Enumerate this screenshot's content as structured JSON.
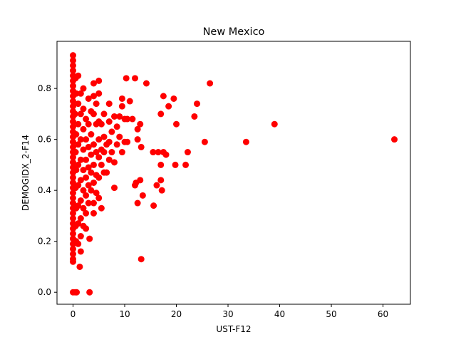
{
  "chart_data": {
    "type": "scatter",
    "title": "New Mexico",
    "xlabel": "UST-F12",
    "ylabel": "DEMOGIDX_2-F14",
    "xlim": [
      -3.1,
      65.3
    ],
    "ylim": [
      -0.047,
      0.985
    ],
    "xticks": [
      0,
      10,
      20,
      30,
      40,
      50,
      60
    ],
    "yticks": [
      0.0,
      0.2,
      0.4,
      0.6,
      0.8
    ],
    "marker_color": "#ff0000",
    "grid": false,
    "points": [
      [
        0,
        0.93
      ],
      [
        0,
        0.91
      ],
      [
        0,
        0.89
      ],
      [
        0,
        0.87
      ],
      [
        0,
        0.85
      ],
      [
        0,
        0.83
      ],
      [
        0,
        0.81
      ],
      [
        0,
        0.79
      ],
      [
        0,
        0.77
      ],
      [
        0,
        0.75
      ],
      [
        0,
        0.73
      ],
      [
        0,
        0.71
      ],
      [
        0,
        0.69
      ],
      [
        0,
        0.67
      ],
      [
        0,
        0.65
      ],
      [
        0,
        0.63
      ],
      [
        0,
        0.61
      ],
      [
        0,
        0.59
      ],
      [
        0,
        0.57
      ],
      [
        0,
        0.55
      ],
      [
        0,
        0.53
      ],
      [
        0,
        0.51
      ],
      [
        0,
        0.49
      ],
      [
        0,
        0.47
      ],
      [
        0,
        0.45
      ],
      [
        0,
        0.43
      ],
      [
        0,
        0.41
      ],
      [
        0,
        0.39
      ],
      [
        0,
        0.37
      ],
      [
        0,
        0.35
      ],
      [
        0,
        0.33
      ],
      [
        0,
        0.31
      ],
      [
        0,
        0.29
      ],
      [
        0,
        0.27
      ],
      [
        0,
        0.25
      ],
      [
        0,
        0.23
      ],
      [
        0,
        0.21
      ],
      [
        0,
        0.19
      ],
      [
        0,
        0.17
      ],
      [
        0,
        0.15
      ],
      [
        0,
        0.13
      ],
      [
        0,
        0.12
      ],
      [
        0,
        0.0
      ],
      [
        0.4,
        0.0
      ],
      [
        0.7,
        0.0
      ],
      [
        3.2,
        0.0
      ],
      [
        0.5,
        0.84
      ],
      [
        0.6,
        0.78
      ],
      [
        0.4,
        0.7
      ],
      [
        0.6,
        0.62
      ],
      [
        0.5,
        0.55
      ],
      [
        0.6,
        0.48
      ],
      [
        0.5,
        0.41
      ],
      [
        0.6,
        0.33
      ],
      [
        0.5,
        0.26
      ],
      [
        0.6,
        0.2
      ],
      [
        1,
        0.85
      ],
      [
        1,
        0.74
      ],
      [
        1,
        0.66
      ],
      [
        1,
        0.58
      ],
      [
        1,
        0.5
      ],
      [
        1,
        0.42
      ],
      [
        1,
        0.34
      ],
      [
        1,
        0.27
      ],
      [
        1,
        0.19
      ],
      [
        1.3,
        0.1
      ],
      [
        1.5,
        0.78
      ],
      [
        1.5,
        0.7
      ],
      [
        1.5,
        0.6
      ],
      [
        1.5,
        0.52
      ],
      [
        1.5,
        0.44
      ],
      [
        1.5,
        0.36
      ],
      [
        1.5,
        0.29
      ],
      [
        1.5,
        0.22
      ],
      [
        1.5,
        0.16
      ],
      [
        2,
        0.8
      ],
      [
        2,
        0.72
      ],
      [
        2,
        0.64
      ],
      [
        2,
        0.56
      ],
      [
        2,
        0.48
      ],
      [
        2,
        0.4
      ],
      [
        2,
        0.33
      ],
      [
        2,
        0.26
      ],
      [
        2.5,
        0.68
      ],
      [
        2.5,
        0.6
      ],
      [
        2.5,
        0.52
      ],
      [
        2.5,
        0.45
      ],
      [
        2.5,
        0.38
      ],
      [
        2.5,
        0.31
      ],
      [
        2.5,
        0.25
      ],
      [
        3,
        0.76
      ],
      [
        3,
        0.66
      ],
      [
        3,
        0.57
      ],
      [
        3,
        0.49
      ],
      [
        3,
        0.42
      ],
      [
        3,
        0.35
      ],
      [
        3.2,
        0.21
      ],
      [
        3.5,
        0.71
      ],
      [
        3.5,
        0.62
      ],
      [
        3.5,
        0.54
      ],
      [
        3.5,
        0.47
      ],
      [
        3.5,
        0.4
      ],
      [
        4,
        0.82
      ],
      [
        4,
        0.77
      ],
      [
        4,
        0.7
      ],
      [
        4,
        0.58
      ],
      [
        4,
        0.5
      ],
      [
        4,
        0.43
      ],
      [
        4,
        0.35
      ],
      [
        4,
        0.31
      ],
      [
        4.5,
        0.74
      ],
      [
        4.5,
        0.66
      ],
      [
        4.5,
        0.55
      ],
      [
        4.5,
        0.46
      ],
      [
        4.5,
        0.39
      ],
      [
        5,
        0.83
      ],
      [
        5,
        0.78
      ],
      [
        5,
        0.67
      ],
      [
        5,
        0.6
      ],
      [
        5,
        0.53
      ],
      [
        5,
        0.45
      ],
      [
        5,
        0.37
      ],
      [
        5.5,
        0.66
      ],
      [
        5.5,
        0.56
      ],
      [
        5.5,
        0.5
      ],
      [
        5.5,
        0.33
      ],
      [
        6,
        0.7
      ],
      [
        6,
        0.61
      ],
      [
        6,
        0.55
      ],
      [
        6,
        0.47
      ],
      [
        6.5,
        0.58
      ],
      [
        6.5,
        0.47
      ],
      [
        7,
        0.74
      ],
      [
        7,
        0.67
      ],
      [
        7,
        0.59
      ],
      [
        7,
        0.52
      ],
      [
        7.5,
        0.63
      ],
      [
        7.5,
        0.55
      ],
      [
        8,
        0.69
      ],
      [
        8,
        0.51
      ],
      [
        8,
        0.41
      ],
      [
        8.5,
        0.65
      ],
      [
        8.5,
        0.58
      ],
      [
        9,
        0.69
      ],
      [
        9,
        0.61
      ],
      [
        9.5,
        0.76
      ],
      [
        9.5,
        0.73
      ],
      [
        9.5,
        0.55
      ],
      [
        10,
        0.68
      ],
      [
        10,
        0.59
      ],
      [
        10.3,
        0.84
      ],
      [
        10.5,
        0.68
      ],
      [
        10.5,
        0.59
      ],
      [
        11,
        0.75
      ],
      [
        11.5,
        0.68
      ],
      [
        12,
        0.84
      ],
      [
        12,
        0.42
      ],
      [
        12.2,
        0.43
      ],
      [
        12.5,
        0.64
      ],
      [
        12.5,
        0.6
      ],
      [
        12.5,
        0.35
      ],
      [
        13,
        0.66
      ],
      [
        13,
        0.44
      ],
      [
        13.2,
        0.57
      ],
      [
        13.2,
        0.13
      ],
      [
        13.5,
        0.38
      ],
      [
        14.2,
        0.82
      ],
      [
        15.5,
        0.55
      ],
      [
        15.6,
        0.34
      ],
      [
        16.2,
        0.42
      ],
      [
        16.5,
        0.55
      ],
      [
        17,
        0.7
      ],
      [
        17,
        0.5
      ],
      [
        17,
        0.44
      ],
      [
        17.2,
        0.4
      ],
      [
        17.5,
        0.77
      ],
      [
        17.5,
        0.55
      ],
      [
        18,
        0.54
      ],
      [
        18.5,
        0.73
      ],
      [
        19.5,
        0.76
      ],
      [
        19.8,
        0.5
      ],
      [
        20,
        0.66
      ],
      [
        21.8,
        0.5
      ],
      [
        22.2,
        0.55
      ],
      [
        23.5,
        0.69
      ],
      [
        24,
        0.74
      ],
      [
        25.5,
        0.59
      ],
      [
        26.5,
        0.82
      ],
      [
        33.5,
        0.59
      ],
      [
        39,
        0.66
      ],
      [
        62.2,
        0.6
      ]
    ]
  }
}
